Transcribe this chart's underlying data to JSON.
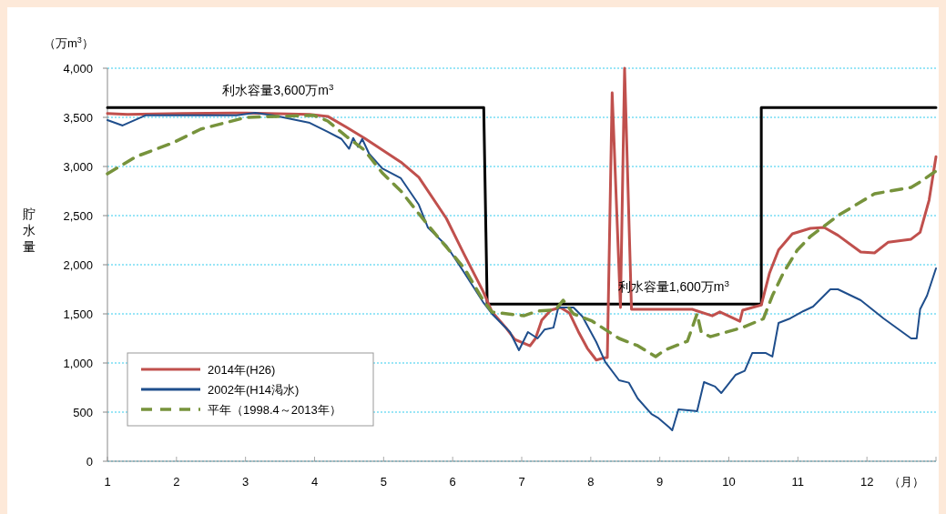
{
  "chart_data": {
    "type": "line",
    "xlabel": "（月）",
    "ylabel": "貯水量",
    "annotations": [
      "（万m$^{3}$）",
      {
        "text": "利水容量3,600万m$^{3}$",
        "x": 3.47,
        "y": 3600
      },
      {
        "text": "利水容量1,600万m$^{3}$",
        "x": 9.2,
        "y": 1600
      }
    ],
    "xlim": [
      1,
      13
    ],
    "xticks": [
      1,
      2,
      3,
      4,
      5,
      6,
      7,
      8,
      9,
      10,
      11,
      12,
      {
        "value": 13,
        "label": null
      }
    ],
    "ylim": [
      0,
      4000
    ],
    "yticks": [
      0,
      500,
      {
        "value": 1000,
        "label": "1,000"
      },
      {
        "value": 1500,
        "label": "1,500"
      },
      {
        "value": 2000,
        "label": "2,000"
      },
      {
        "value": 2500,
        "label": "2,500"
      },
      {
        "value": 3000,
        "label": "3,000"
      },
      {
        "value": 3500,
        "label": "3,500"
      },
      {
        "value": 4000,
        "label": "4,000"
      }
    ],
    "grid": "y",
    "legend": "bottom left",
    "series": [
      {
        "color": "#000000",
        "x": [
          1,
          6.45,
          6.5,
          10.47,
          10.47,
          13
        ],
        "values": [
          3600,
          3600,
          1600,
          1600,
          3600,
          3600
        ]
      },
      {
        "name": "2014年(H26)",
        "color": "#c0504d",
        "x": [
          1.0,
          1.29,
          2.08,
          3.01,
          3.93,
          4.19,
          4.46,
          4.72,
          4.98,
          5.25,
          5.51,
          5.91,
          6.17,
          6.44,
          6.57,
          6.77,
          6.9,
          7.12,
          7.2,
          7.29,
          7.42,
          7.56,
          7.69,
          7.82,
          7.95,
          8.08,
          8.18,
          8.24,
          8.31,
          8.43,
          8.49,
          8.59,
          8.94,
          9.47,
          9.76,
          9.87,
          10.16,
          10.2,
          10.47,
          10.59,
          10.72,
          10.92,
          11.18,
          11.38,
          11.58,
          11.91,
          12.11,
          12.31,
          12.64,
          12.77,
          12.9,
          13.0
        ],
        "values": [
          3540,
          3530,
          3540,
          3545,
          3530,
          3510,
          3400,
          3290,
          3170,
          3045,
          2890,
          2470,
          2100,
          1730,
          1520,
          1360,
          1240,
          1175,
          1250,
          1435,
          1537,
          1565,
          1510,
          1320,
          1150,
          1030,
          1050,
          1055,
          3750,
          1565,
          4000,
          1546,
          1546,
          1546,
          1480,
          1520,
          1425,
          1537,
          1590,
          1917,
          2150,
          2315,
          2370,
          2380,
          2300,
          2130,
          2120,
          2230,
          2260,
          2330,
          2657,
          3100
        ]
      },
      {
        "name": "2002年(H14渇水)",
        "color": "#1f4e8c",
        "x": [
          1.0,
          1.22,
          1.55,
          2.87,
          3.14,
          3.4,
          3.93,
          4.19,
          4.39,
          4.5,
          4.56,
          4.63,
          4.69,
          4.79,
          4.98,
          5.25,
          5.51,
          5.64,
          5.91,
          6.17,
          6.44,
          6.57,
          6.83,
          6.96,
          7.09,
          7.23,
          7.33,
          7.46,
          7.53,
          7.75,
          7.88,
          8.08,
          8.21,
          8.41,
          8.55,
          8.68,
          8.88,
          8.97,
          9.14,
          9.18,
          9.27,
          9.54,
          9.64,
          9.8,
          9.89,
          10.1,
          10.23,
          10.34,
          10.53,
          10.63,
          10.72,
          10.89,
          11.08,
          11.22,
          11.47,
          11.58,
          11.91,
          12.24,
          12.64,
          12.72,
          12.77,
          12.87,
          13.0
        ],
        "values": [
          3472,
          3417,
          3520,
          3520,
          3546,
          3520,
          3444,
          3352,
          3280,
          3180,
          3290,
          3200,
          3280,
          3130,
          2981,
          2880,
          2611,
          2380,
          2194,
          1917,
          1620,
          1500,
          1315,
          1130,
          1315,
          1250,
          1340,
          1360,
          1565,
          1565,
          1472,
          1213,
          1010,
          824,
          800,
          639,
          481,
          444,
          343,
          315,
          528,
          510,
          806,
          760,
          694,
          880,
          920,
          1102,
          1102,
          1065,
          1407,
          1454,
          1528,
          1574,
          1750,
          1750,
          1639,
          1454,
          1250,
          1250,
          1546,
          1685,
          1963
        ]
      },
      {
        "name": "平年（1998.4～2013年）",
        "color": "#77933c",
        "line_style": "dashed",
        "x": [
          1.0,
          1.42,
          1.95,
          2.35,
          3.01,
          3.99,
          4.19,
          4.46,
          4.72,
          4.98,
          5.25,
          5.51,
          5.78,
          6.17,
          6.44,
          6.57,
          7.03,
          7.23,
          7.49,
          7.6,
          7.75,
          8.02,
          8.41,
          8.68,
          8.94,
          9.07,
          9.4,
          9.54,
          9.6,
          9.73,
          10.2,
          10.5,
          10.63,
          10.79,
          10.99,
          11.18,
          11.58,
          11.91,
          12.11,
          12.64,
          12.77,
          13.0
        ],
        "values": [
          2926,
          3102,
          3241,
          3380,
          3500,
          3520,
          3463,
          3306,
          3167,
          2935,
          2750,
          2519,
          2287,
          1963,
          1639,
          1519,
          1481,
          1528,
          1540,
          1639,
          1500,
          1426,
          1250,
          1176,
          1065,
          1130,
          1222,
          1500,
          1315,
          1268,
          1361,
          1450,
          1685,
          1917,
          2148,
          2287,
          2500,
          2639,
          2722,
          2787,
          2843,
          2954
        ]
      }
    ]
  }
}
